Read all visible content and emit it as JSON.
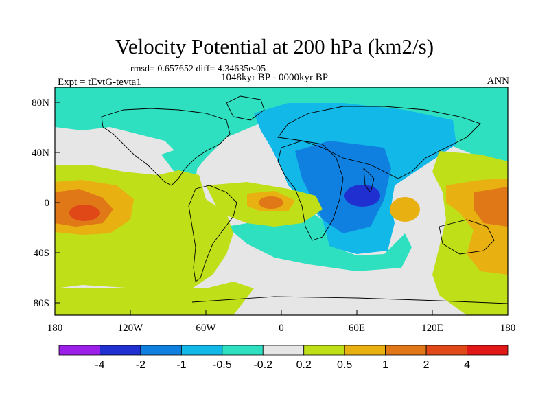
{
  "title": "Velocity Potential at 200 hPa (km2/s)",
  "stats_line": "rmsd= 0.657652 diff= 4.34635e-05",
  "period": "1048kyr BP - 0000kyr BP",
  "experiment": "Expt = tEvtG-tevta1",
  "season": "ANN",
  "map": {
    "projection": "cylindrical-equidistant",
    "lon_range": [
      -180,
      180
    ],
    "lat_range": [
      -90,
      90
    ],
    "y_tick_labels": [
      "80N",
      "40N",
      "0",
      "40S",
      "80S"
    ],
    "x_tick_labels": [
      "180",
      "120W",
      "60W",
      "0",
      "60E",
      "120E",
      "180"
    ],
    "coastlines": "black continental outlines"
  },
  "colorbar": {
    "tick_labels": [
      "-4",
      "-2",
      "-1",
      "-0.5",
      "-0.2",
      "0.2",
      "0.5",
      "1",
      "2",
      "4"
    ],
    "colors": [
      "#9b1fe8",
      "#2030d0",
      "#1080e0",
      "#12b8e8",
      "#2ee0c0",
      "#e6e6e6",
      "#bfe018",
      "#e8b010",
      "#e07818",
      "#e04818",
      "#e01818"
    ]
  }
}
